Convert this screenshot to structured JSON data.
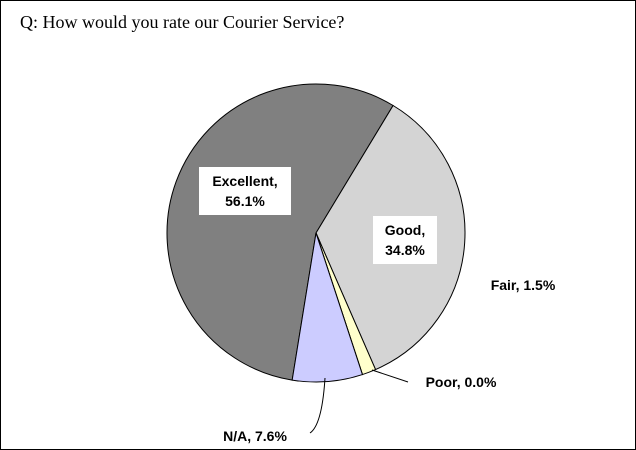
{
  "chart_data": {
    "type": "pie",
    "title": "Q: How would you rate our Courier Service?",
    "categories": [
      "Excellent",
      "Good",
      "Fair",
      "Poor",
      "N/A"
    ],
    "values": [
      56.1,
      34.8,
      1.5,
      0.0,
      7.6
    ],
    "value_labels": [
      "Excellent, 56.1%",
      "Good, 34.8%",
      "Fair, 1.5%",
      "Poor, 0.0%",
      "N/A, 7.6%"
    ],
    "colors": [
      "#808080",
      "#d4d4d4",
      "#ffffcc",
      "#ffffff",
      "#ccccff"
    ]
  }
}
